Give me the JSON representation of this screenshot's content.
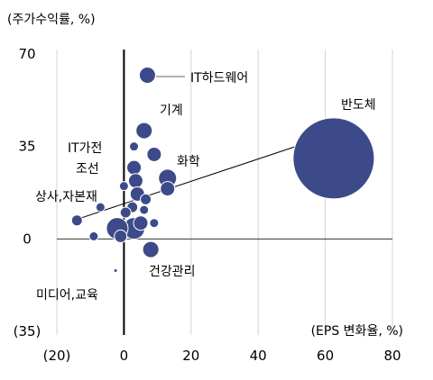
{
  "chart_data": {
    "type": "scatter",
    "title": "",
    "ylabel": "(주가수익률, %)",
    "xlabel": "(EPS 변화율, %)",
    "xlim": [
      -20,
      80
    ],
    "ylim": [
      -35,
      70
    ],
    "x_ticks": [
      {
        "value": -20,
        "label": "(20)"
      },
      {
        "value": 0,
        "label": "0"
      },
      {
        "value": 20,
        "label": "20"
      },
      {
        "value": 40,
        "label": "40"
      },
      {
        "value": 60,
        "label": "60"
      },
      {
        "value": 80,
        "label": "80"
      }
    ],
    "y_ticks": [
      {
        "value": 70,
        "label": "70"
      },
      {
        "value": 35,
        "label": "35"
      },
      {
        "value": 0,
        "label": "0"
      },
      {
        "value": -35,
        "label": "(35)"
      }
    ],
    "grid": "vertical",
    "bubble_color": "#3d4a8a",
    "trendline": {
      "x": [
        -15,
        63
      ],
      "y": [
        7,
        40
      ]
    },
    "points": [
      {
        "x": 62.5,
        "y": 30.5,
        "size": 45,
        "label": "반도체"
      },
      {
        "x": 7,
        "y": 62,
        "size": 9,
        "label": "IT하드웨어"
      },
      {
        "x": 6,
        "y": 41,
        "size": 9,
        "label": "기계"
      },
      {
        "x": 13,
        "y": 23,
        "size": 10,
        "label": "화학"
      },
      {
        "x": 3,
        "y": 35,
        "size": 5,
        "label": "IT가전"
      },
      {
        "x": 3,
        "y": 27,
        "size": 8,
        "label": "조선"
      },
      {
        "x": -7,
        "y": 12,
        "size": 5,
        "label": "상사,자본재"
      },
      {
        "x": 8,
        "y": -4,
        "size": 9,
        "label": "건강관리"
      },
      {
        "x": -2.5,
        "y": -12,
        "size": 2,
        "label": "미디어,교육"
      },
      {
        "x": -14,
        "y": 7,
        "size": 6,
        "label": ""
      },
      {
        "x": 9,
        "y": 32,
        "size": 8,
        "label": ""
      },
      {
        "x": 3.5,
        "y": 22,
        "size": 8,
        "label": ""
      },
      {
        "x": 13,
        "y": 19,
        "size": 8,
        "label": ""
      },
      {
        "x": 4,
        "y": 17,
        "size": 8,
        "label": ""
      },
      {
        "x": 0,
        "y": 20,
        "size": 5,
        "label": ""
      },
      {
        "x": 6.5,
        "y": 15,
        "size": 6,
        "label": ""
      },
      {
        "x": 2.5,
        "y": 12,
        "size": 6,
        "label": ""
      },
      {
        "x": 6,
        "y": 11,
        "size": 5,
        "label": ""
      },
      {
        "x": 0.5,
        "y": 10,
        "size": 6,
        "label": ""
      },
      {
        "x": 5,
        "y": 6,
        "size": 8,
        "label": ""
      },
      {
        "x": 9,
        "y": 6,
        "size": 5,
        "label": ""
      },
      {
        "x": 3,
        "y": 4,
        "size": 12,
        "label": ""
      },
      {
        "x": -2,
        "y": 4,
        "size": 12,
        "label": ""
      },
      {
        "x": -1,
        "y": 1,
        "size": 7,
        "label": ""
      },
      {
        "x": -9,
        "y": 1,
        "size": 5,
        "label": ""
      }
    ]
  }
}
